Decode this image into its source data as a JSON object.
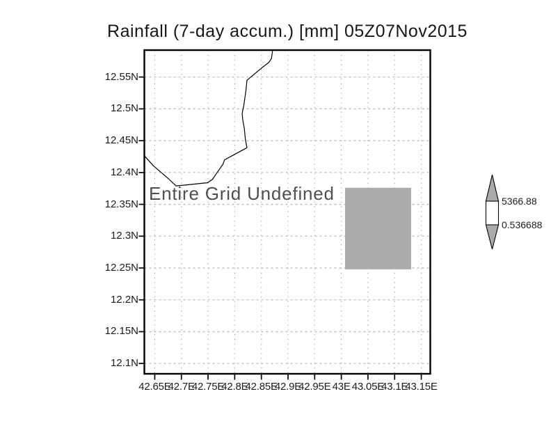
{
  "chart_data": {
    "type": "map",
    "title": "Rainfall (7-day accum.) [mm] 05Z07Nov2015",
    "annotation": "Entire Grid Undefined",
    "grid": "dotted",
    "lon_range": [
      42.6305,
      43.1669
    ],
    "lat_range": [
      12.0838,
      12.5923
    ],
    "x_ticks": [
      {
        "value": 42.65,
        "label": "42.65E"
      },
      {
        "value": 42.7,
        "label": "42.7E"
      },
      {
        "value": 42.75,
        "label": "42.75E"
      },
      {
        "value": 42.8,
        "label": "42.8E"
      },
      {
        "value": 42.85,
        "label": "42.85E"
      },
      {
        "value": 42.9,
        "label": "42.9E"
      },
      {
        "value": 42.95,
        "label": "42.95E"
      },
      {
        "value": 43.0,
        "label": "43E"
      },
      {
        "value": 43.05,
        "label": "43.05E"
      },
      {
        "value": 43.1,
        "label": "43.1E"
      },
      {
        "value": 43.15,
        "label": "43.15E"
      }
    ],
    "y_ticks": [
      {
        "value": 12.55,
        "label": "12.55N"
      },
      {
        "value": 12.5,
        "label": "12.5N"
      },
      {
        "value": 12.45,
        "label": "12.45N"
      },
      {
        "value": 12.4,
        "label": "12.4N"
      },
      {
        "value": 12.35,
        "label": "12.35N"
      },
      {
        "value": 12.3,
        "label": "12.3N"
      },
      {
        "value": 12.25,
        "label": "12.25N"
      },
      {
        "value": 12.2,
        "label": "12.2N"
      },
      {
        "value": 12.15,
        "label": "12.15N"
      },
      {
        "value": 12.1,
        "label": "12.1N"
      }
    ],
    "coastline": [
      [
        42.63,
        12.427
      ],
      [
        42.647,
        12.411
      ],
      [
        42.676,
        12.39
      ],
      [
        42.69,
        12.379
      ],
      [
        42.703,
        12.38
      ],
      [
        42.749,
        12.384
      ],
      [
        42.758,
        12.389
      ],
      [
        42.767,
        12.4
      ],
      [
        42.778,
        12.413
      ],
      [
        42.781,
        12.42
      ],
      [
        42.801,
        12.429
      ],
      [
        42.823,
        12.439
      ],
      [
        42.82,
        12.452
      ],
      [
        42.818,
        12.469
      ],
      [
        42.815,
        12.483
      ],
      [
        42.814,
        12.493
      ],
      [
        42.817,
        12.505
      ],
      [
        42.821,
        12.529
      ],
      [
        42.823,
        12.545
      ],
      [
        42.853,
        12.566
      ],
      [
        42.864,
        12.573
      ],
      [
        42.869,
        12.579
      ],
      [
        42.871,
        12.592
      ]
    ],
    "undefined_region": {
      "lon": [
        43.007,
        43.131
      ],
      "lat": [
        12.248,
        12.376
      ]
    },
    "colorbar": {
      "max_label": "5366.88",
      "min_label": "0.536688",
      "fill": "#ababab"
    },
    "style": {
      "grid_color": "#b4b4b4",
      "frame_color": "#000000",
      "coast_color": "#000000"
    }
  }
}
